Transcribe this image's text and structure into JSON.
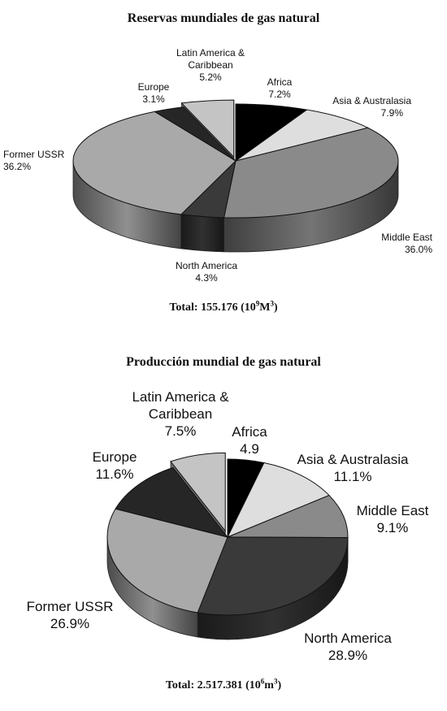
{
  "chart_data": [
    {
      "type": "pie",
      "title": "Reservas mundiales de gas natural",
      "total": {
        "label": "Total: 155.176",
        "unit_base": "10",
        "unit_exp": "9",
        "unit_suffix": "M",
        "unit_suffix_exp": "3"
      },
      "slices": [
        {
          "name": "Africa",
          "value": 7.2,
          "label": "7.2%",
          "color": "#000000"
        },
        {
          "name": "Asia & Australasia",
          "value": 7.9,
          "label": "7.9%",
          "color": "#dedede"
        },
        {
          "name": "Middle East",
          "value": 36.0,
          "label": "36.0%",
          "color": "#8a8a8a"
        },
        {
          "name": "North America",
          "value": 4.3,
          "label": "4.3%",
          "color": "#3a3a3a"
        },
        {
          "name": "Former USSR",
          "value": 36.2,
          "label": "36.2%",
          "color": "#a9a9a9"
        },
        {
          "name": "Europe",
          "value": 3.1,
          "label": "3.1%",
          "color": "#262626"
        },
        {
          "name": "Latin America & Caribbean",
          "value": 5.2,
          "label": "5.2%",
          "color": "#c4c4c4",
          "exploded": true
        }
      ]
    },
    {
      "type": "pie",
      "title": "Producción mundial de gas natural",
      "total": {
        "label": "Total: 2.517.381",
        "unit_base": "10",
        "unit_exp": "6",
        "unit_suffix": "m",
        "unit_suffix_exp": "3"
      },
      "slices": [
        {
          "name": "Africa",
          "value": 4.9,
          "label": "4.9",
          "color": "#000000"
        },
        {
          "name": "Asia & Australasia",
          "value": 11.1,
          "label": "11.1%",
          "color": "#dedede"
        },
        {
          "name": "Middle East",
          "value": 9.1,
          "label": "9.1%",
          "color": "#8a8a8a"
        },
        {
          "name": "North America",
          "value": 28.9,
          "label": "28.9%",
          "color": "#3a3a3a"
        },
        {
          "name": "Former USSR",
          "value": 26.9,
          "label": "26.9%",
          "color": "#a9a9a9"
        },
        {
          "name": "Europe",
          "value": 11.6,
          "label": "11.6%",
          "color": "#262626"
        },
        {
          "name": "Latin America & Caribbean",
          "value": 7.5,
          "label": "7.5%",
          "color": "#c4c4c4",
          "exploded": true
        }
      ]
    }
  ]
}
